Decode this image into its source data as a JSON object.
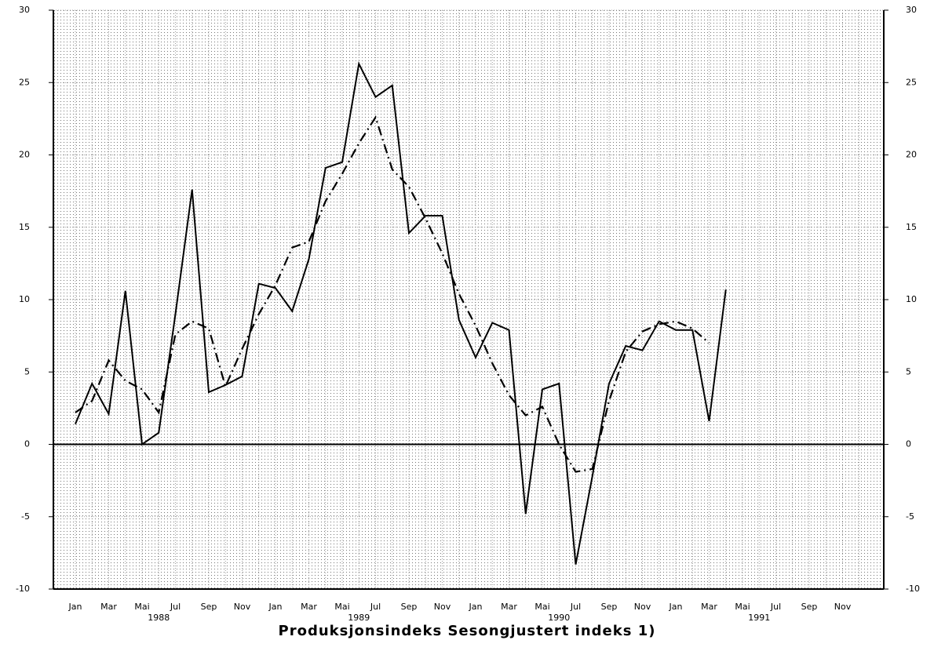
{
  "chart_data": {
    "type": "line",
    "title": "Produksjonsindeks  Sesongjustert indeks 1)",
    "categories": [
      "Jan",
      null,
      "Mar",
      null,
      "Mai",
      null,
      "Jul",
      null,
      "Sep",
      null,
      "Nov",
      null,
      "Jan",
      null,
      "Mar",
      null,
      "Mai",
      null,
      "Jul",
      null,
      "Sep",
      null,
      "Nov",
      null,
      "Jan",
      null,
      "Mar",
      null,
      "Mai",
      null,
      "Jul",
      null,
      "Sep",
      null,
      "Nov",
      null,
      "Jan",
      null,
      "Mar",
      null,
      "Mai",
      null,
      "Jul",
      null,
      "Sep",
      null,
      "Nov",
      null
    ],
    "years": [
      "1988",
      "1989",
      "1990",
      "1991"
    ],
    "series": [
      {
        "color": "#000000",
        "style": "solid",
        "values": [
          1.4,
          4.2,
          2.1,
          10.6,
          0,
          0.8,
          9.0,
          17.6,
          3.6,
          4.1,
          4.7,
          11.1,
          10.8,
          9.2,
          12.8,
          19.1,
          19.5,
          26.3,
          24.0,
          24.8,
          14.6,
          15.8,
          15.8,
          8.6,
          6.0,
          8.4,
          7.9,
          -4.8,
          3.8,
          4.2,
          -8.3,
          -2.2,
          4.2,
          6.8,
          6.5,
          8.5,
          7.9,
          7.9,
          1.6,
          10.7,
          null,
          null,
          null,
          null,
          null,
          null,
          null,
          null
        ]
      },
      {
        "color": "#000000",
        "style": "dashdot",
        "values": [
          2.2,
          3.0,
          5.8,
          4.4,
          3.8,
          2.2,
          7.6,
          8.5,
          8.0,
          4.0,
          6.6,
          9.0,
          11.0,
          13.6,
          14.0,
          16.8,
          18.7,
          20.8,
          22.6,
          19.0,
          17.8,
          15.6,
          13.2,
          10.4,
          8.2,
          5.6,
          3.4,
          2.0,
          2.6,
          0.0,
          -1.9,
          -1.7,
          3.0,
          6.4,
          7.8,
          8.3,
          8.5,
          8.0,
          7.0,
          null,
          null,
          null,
          null,
          null,
          null,
          null,
          null,
          null
        ]
      }
    ],
    "ylim": [
      -10,
      30
    ],
    "yticks": [
      -10,
      -5,
      0,
      5,
      10,
      15,
      20,
      25,
      30
    ],
    "y2lim": [
      -10,
      30
    ],
    "y2ticks": [
      -10,
      -5,
      0,
      5,
      10,
      15,
      20,
      25,
      30
    ],
    "grid": true
  }
}
